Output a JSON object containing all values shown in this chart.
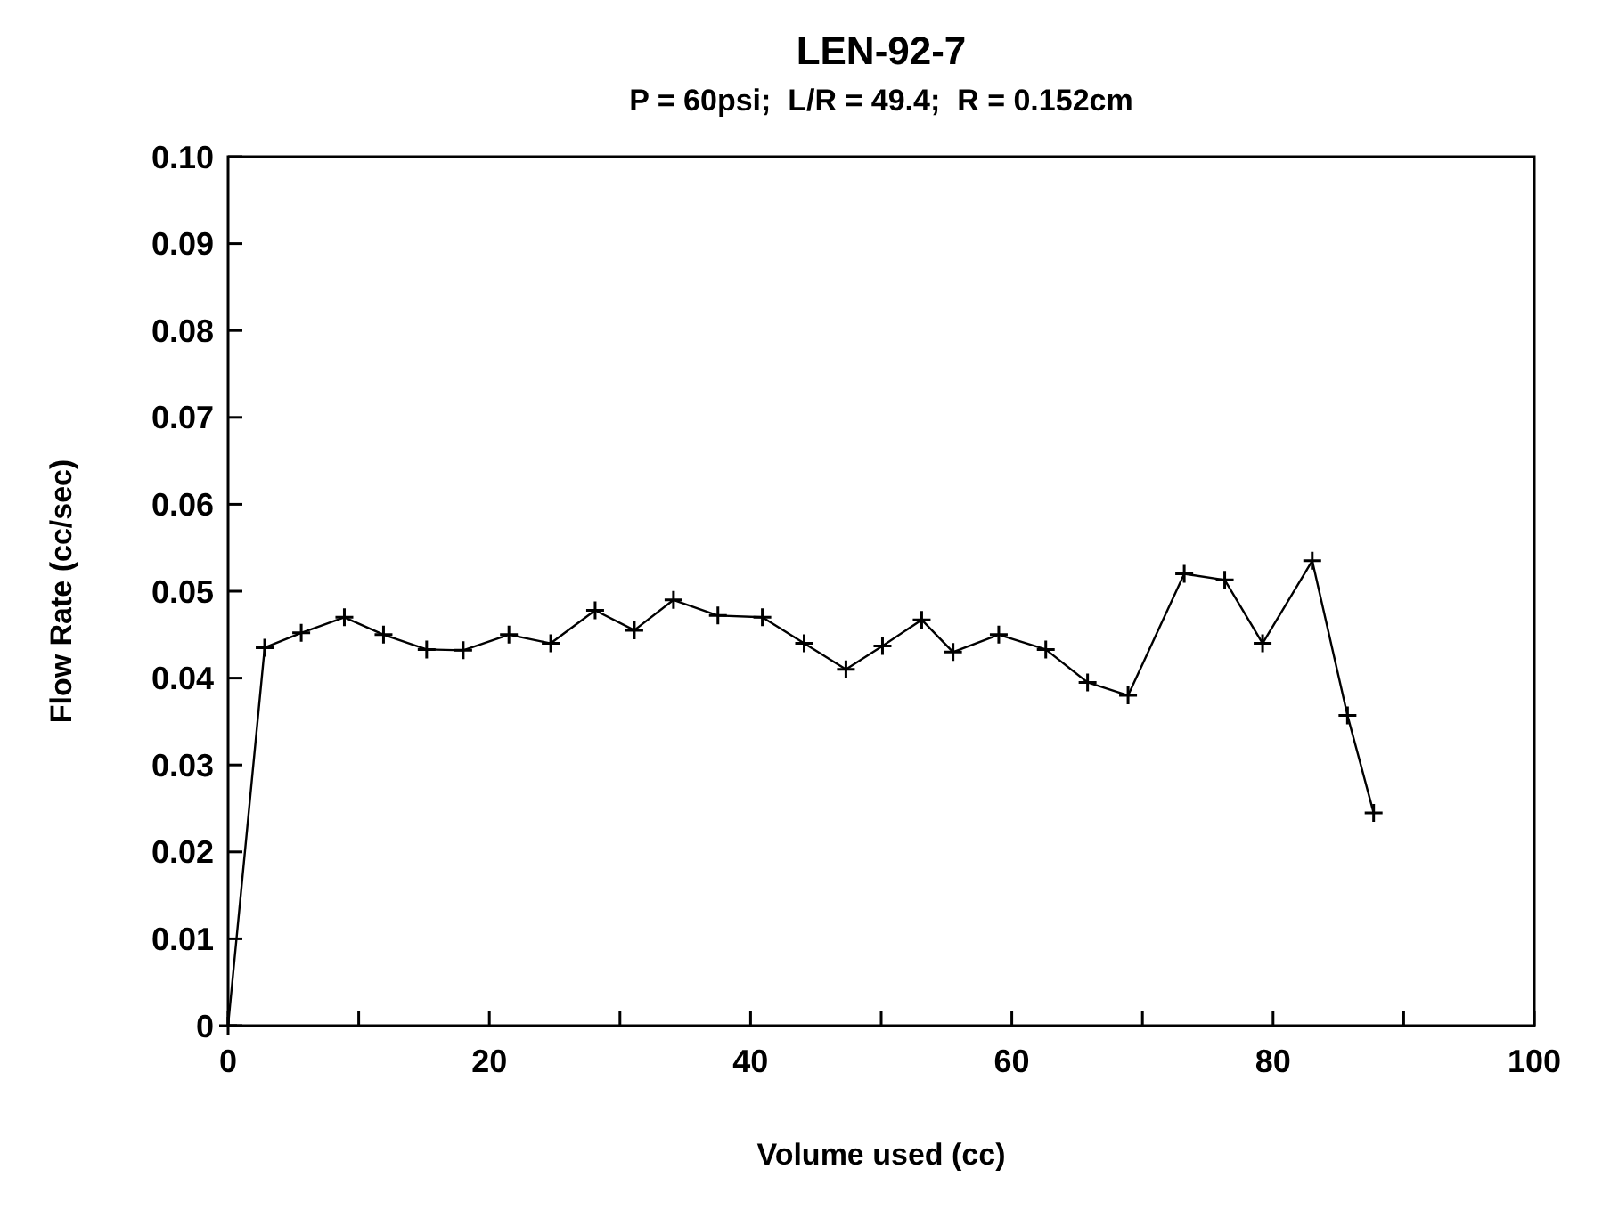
{
  "chart_data": {
    "type": "line",
    "title": "LEN-92-7",
    "subtitle": "P = 60psi;  L/R = 49.4;  R = 0.152cm",
    "xlabel": "Volume used (cc)",
    "ylabel": "Flow Rate (cc/sec)",
    "x": [
      0,
      2.8,
      5.6,
      8.9,
      11.9,
      15.2,
      18.0,
      21.5,
      24.7,
      28.1,
      31.1,
      34.1,
      37.5,
      40.9,
      44.1,
      47.3,
      50.1,
      53.1,
      55.5,
      59.0,
      62.6,
      65.8,
      68.9,
      73.2,
      76.3,
      79.2,
      83.0,
      85.7,
      87.7
    ],
    "series": [
      {
        "color": "#000000",
        "values": [
          0,
          0.0435,
          0.0452,
          0.047,
          0.045,
          0.0433,
          0.0432,
          0.045,
          0.044,
          0.0478,
          0.0455,
          0.049,
          0.0472,
          0.047,
          0.044,
          0.041,
          0.0437,
          0.0467,
          0.043,
          0.045,
          0.0433,
          0.0395,
          0.038,
          0.052,
          0.0513,
          0.044,
          0.0535,
          0.0357,
          0.0245
        ]
      }
    ],
    "marker": "cross",
    "line_style": "solid",
    "xlim": [
      0,
      100
    ],
    "xticks": [
      0,
      {
        "value": 10,
        "label": null
      },
      20,
      {
        "value": 30,
        "label": null
      },
      40,
      {
        "value": 50,
        "label": null
      },
      60,
      {
        "value": 70,
        "label": null
      },
      80,
      {
        "value": 90,
        "label": null
      },
      100
    ],
    "ylim": [
      0,
      0.1
    ],
    "yticks": [
      0,
      {
        "value": 0.01,
        "label": "0.01"
      },
      {
        "value": 0.02,
        "label": "0.02"
      },
      {
        "value": 0.03,
        "label": "0.03"
      },
      {
        "value": 0.04,
        "label": "0.04"
      },
      {
        "value": 0.05,
        "label": "0.05"
      },
      {
        "value": 0.06,
        "label": "0.06"
      },
      {
        "value": 0.07,
        "label": "0.07"
      },
      {
        "value": 0.08,
        "label": "0.08"
      },
      {
        "value": 0.09,
        "label": "0.09"
      },
      {
        "value": 0.1,
        "label": "0.10"
      }
    ]
  }
}
